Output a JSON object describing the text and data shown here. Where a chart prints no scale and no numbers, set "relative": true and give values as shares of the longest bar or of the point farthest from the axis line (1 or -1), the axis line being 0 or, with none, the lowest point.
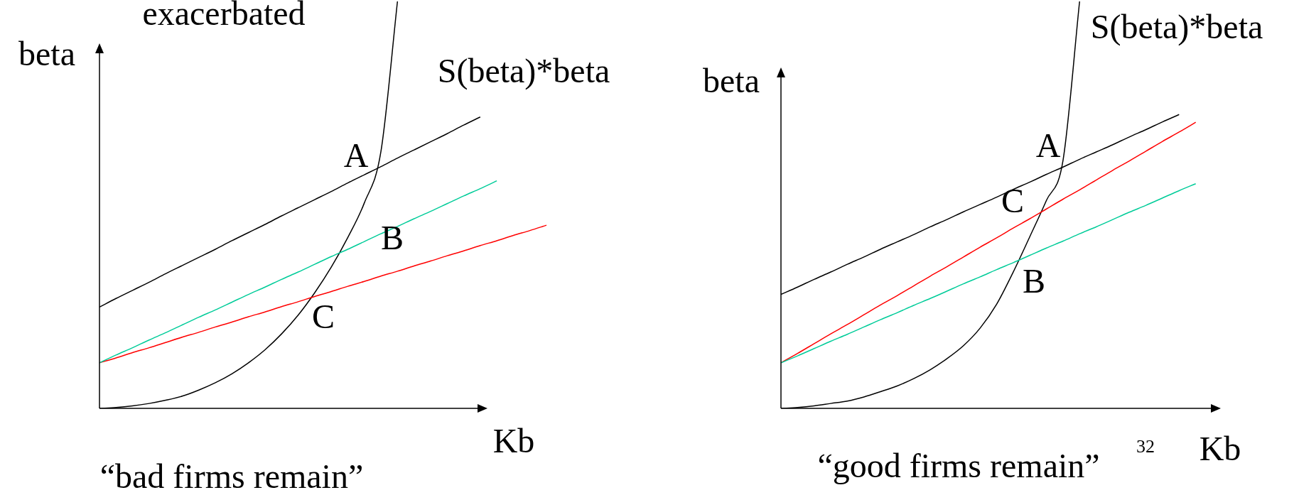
{
  "chart_data": [
    {
      "type": "line",
      "title": "“bad firms remain”",
      "xlabel": "Kb",
      "ylabel": "beta",
      "relative": true,
      "marker": "none",
      "legend": false,
      "categories": [
        null,
        null,
        null,
        null,
        null,
        null,
        null,
        null,
        null,
        null,
        null,
        null,
        null,
        null,
        null,
        null,
        null,
        null,
        null,
        null,
        null,
        null,
        null,
        null,
        null,
        null,
        null,
        null
      ],
      "series": [
        {
          "color": "#000000",
          "values": [
            0.249,
            0.27,
            0.29,
            0.31,
            0.331,
            0.351,
            0.371,
            0.391,
            0.412,
            0.432,
            0.452,
            0.473,
            0.493,
            0.513,
            0.533,
            0.554,
            0.574,
            0.594,
            0.615,
            0.635,
            0.655,
            0.675,
            0.696,
            0.716,
            null,
            null,
            null,
            null
          ]
        },
        {
          "color": "#00cc99",
          "values": [
            0.112,
            0.131,
            0.149,
            0.168,
            0.186,
            0.205,
            0.224,
            0.242,
            0.261,
            0.28,
            0.298,
            0.317,
            0.335,
            0.354,
            0.373,
            0.391,
            0.41,
            0.429,
            0.447,
            0.466,
            0.484,
            0.503,
            0.522,
            0.54,
            0.559,
            null,
            null,
            null
          ]
        },
        {
          "color": "#ff0000",
          "values": [
            0.112,
            0.124,
            0.137,
            0.149,
            0.162,
            0.175,
            0.187,
            0.2,
            0.212,
            0.225,
            0.237,
            0.25,
            0.262,
            0.275,
            0.287,
            0.3,
            0.312,
            0.325,
            0.337,
            0.35,
            0.362,
            0.375,
            0.387,
            0.4,
            0.412,
            0.425,
            0.437,
            0.45
          ]
        },
        {
          "name": "S(beta)*beta",
          "color": "#000000",
          "values": [
            0,
            0.002,
            0.006,
            0.012,
            0.02,
            0.03,
            0.045,
            0.063,
            0.085,
            0.112,
            0.144,
            0.183,
            0.229,
            0.284,
            0.347,
            0.42,
            0.505,
            0.631,
            1,
            null,
            null,
            null,
            null,
            null,
            null,
            null,
            null,
            null
          ]
        }
      ],
      "annotations": [
        "exacerbated",
        "A",
        "B",
        "C"
      ]
    },
    {
      "type": "line",
      "title": "“good firms remain”",
      "xlabel": "Kb",
      "ylabel": "beta",
      "relative": true,
      "marker": "none",
      "legend": false,
      "categories": [
        null,
        null,
        null,
        null,
        null,
        null,
        null,
        null,
        null,
        null,
        null,
        null,
        null,
        null,
        null,
        null,
        null,
        null,
        null,
        null,
        null,
        null,
        null,
        null,
        null,
        null,
        null
      ],
      "series": [
        {
          "color": "#000000",
          "values": [
            0.28,
            0.298,
            0.317,
            0.335,
            0.354,
            0.372,
            0.391,
            0.409,
            0.427,
            0.446,
            0.464,
            0.483,
            0.501,
            0.519,
            0.538,
            0.556,
            0.575,
            0.593,
            0.612,
            0.63,
            0.648,
            0.667,
            0.685,
            0.704,
            0.722,
            null,
            null
          ]
        },
        {
          "color": "#00cc99",
          "values": [
            0.112,
            0.129,
            0.147,
            0.165,
            0.182,
            0.2,
            0.218,
            0.235,
            0.253,
            0.27,
            0.288,
            0.306,
            0.323,
            0.341,
            0.358,
            0.376,
            0.394,
            0.411,
            0.429,
            0.446,
            0.464,
            0.482,
            0.499,
            0.517,
            0.535,
            0.552,
            null
          ]
        },
        {
          "color": "#ff0000",
          "values": [
            0.112,
            0.135,
            0.159,
            0.183,
            0.206,
            0.23,
            0.254,
            0.277,
            0.301,
            0.325,
            0.348,
            0.372,
            0.396,
            0.419,
            0.443,
            0.466,
            0.49,
            0.514,
            0.537,
            0.561,
            0.585,
            0.608,
            0.632,
            0.656,
            0.679,
            0.703,
            null
          ]
        },
        {
          "name": "S(beta)*beta",
          "color": "#000000",
          "values": [
            0,
            0.002,
            0.006,
            0.012,
            0.018,
            0.028,
            0.041,
            0.055,
            0.073,
            0.095,
            0.122,
            0.154,
            0.197,
            0.256,
            0.335,
            0.422,
            0.511,
            0.609,
            1,
            null,
            null,
            null,
            null,
            null,
            null,
            null,
            null
          ]
        }
      ],
      "annotations": [
        "A",
        "C",
        "B",
        "32"
      ]
    }
  ]
}
